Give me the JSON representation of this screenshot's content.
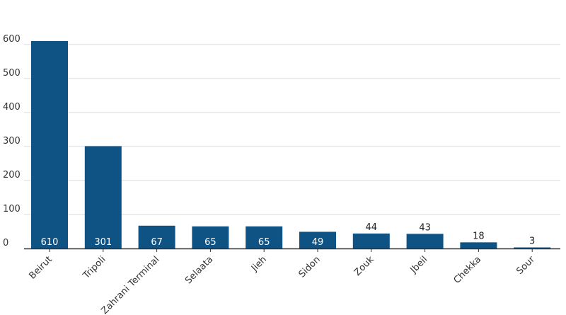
{
  "chart_data": {
    "type": "bar",
    "categories": [
      "Beirut",
      "Tripoli",
      "Zahrani Terminal",
      "Selaata",
      "Jieh",
      "Sidon",
      "Zouk",
      "Jbeil",
      "Chekka",
      "Sour"
    ],
    "values": [
      610,
      301,
      67,
      65,
      65,
      49,
      44,
      43,
      18,
      3
    ],
    "value_labels": [
      "610",
      "301",
      "67",
      "65",
      "65",
      "49",
      "44",
      "43",
      "18",
      "3"
    ],
    "yticks": [
      "0",
      "100",
      "200",
      "300",
      "400",
      "500",
      "600"
    ],
    "ylim": [
      0,
      650
    ],
    "grid": true,
    "title": "",
    "xlabel": "",
    "ylabel": ""
  },
  "colors": {
    "bar": "#0f5384",
    "grid": "#d9d9d9",
    "axis": "#333333",
    "label_inside": "#ffffff",
    "label_outside": "#222222"
  }
}
